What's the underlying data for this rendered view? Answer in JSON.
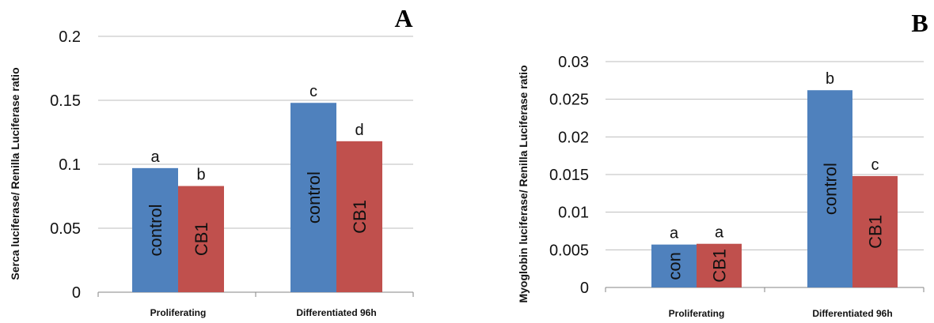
{
  "chart_data": [
    {
      "type": "bar",
      "panel_label": "A",
      "ylabel": "Serca luciferase/ Renilla Luciferase ratio",
      "categories": [
        "Proliferating",
        "Differentiated 96h"
      ],
      "ylim": [
        0,
        0.2
      ],
      "yticks": [
        "0",
        "0.05",
        "0.1",
        "0.15",
        "0.2"
      ],
      "ytick_values": [
        0,
        0.05,
        0.1,
        0.15,
        0.2
      ],
      "grid": true,
      "series": [
        {
          "values": [
            0.097,
            0.148
          ],
          "color": "#4f81bd",
          "bar_labels": [
            "control",
            "control"
          ],
          "letters": [
            "a",
            "c"
          ]
        },
        {
          "values": [
            0.083,
            0.118
          ],
          "color": "#c0504d",
          "bar_labels": [
            "CB1",
            "CB1"
          ],
          "letters": [
            "b",
            "d"
          ]
        }
      ]
    },
    {
      "type": "bar",
      "panel_label": "B",
      "ylabel": "Myoglobin luciferase/ Renilla Luciferase ratio",
      "categories": [
        "Proliferating",
        "Differentiated 96h"
      ],
      "ylim": [
        0,
        0.03
      ],
      "yticks": [
        "0",
        "0.005",
        "0.01",
        "0.015",
        "0.02",
        "0.025",
        "0.03"
      ],
      "ytick_values": [
        0,
        0.005,
        0.01,
        0.015,
        0.02,
        0.025,
        0.03
      ],
      "grid": true,
      "series": [
        {
          "values": [
            0.0057,
            0.0262
          ],
          "color": "#4f81bd",
          "bar_labels": [
            "con",
            "control"
          ],
          "letters": [
            "a",
            "b"
          ]
        },
        {
          "values": [
            0.0058,
            0.0148
          ],
          "color": "#c0504d",
          "bar_labels": [
            "CB1",
            "CB1"
          ],
          "letters": [
            "a",
            "c"
          ]
        }
      ]
    }
  ]
}
